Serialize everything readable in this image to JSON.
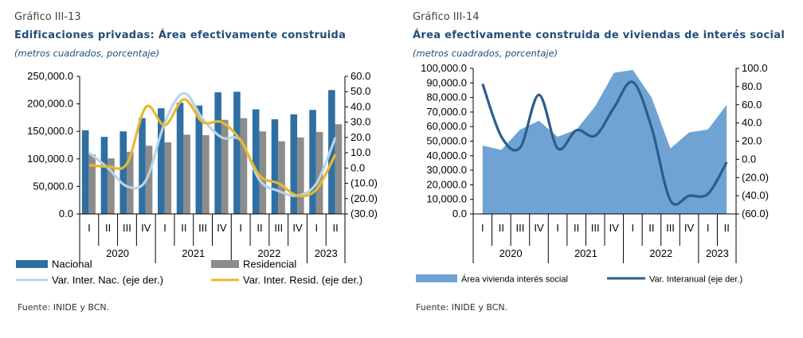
{
  "charts": [
    {
      "figure_label": "Gráfico III-13",
      "title": "Edificaciones privadas: Área efectivamente construida",
      "subtitle": "(metros cuadrados, porcentaje)",
      "source": "Fuente: INIDE y BCN."
    },
    {
      "figure_label": "Gráfico III-14",
      "title": "Área efectivamente construida de viviendas de interés social",
      "subtitle": "(metros cuadrados, porcentaje)",
      "source": "Fuente: INIDE y BCN."
    }
  ],
  "chart_data": [
    {
      "type": "bar",
      "categories": [
        "I",
        "II",
        "III",
        "IV",
        "I",
        "II",
        "III",
        "IV",
        "I",
        "II",
        "III",
        "IV",
        "I",
        "II"
      ],
      "years": [
        {
          "label": "2020",
          "from": 0,
          "to": 3
        },
        {
          "label": "2021",
          "from": 4,
          "to": 7
        },
        {
          "label": "2022",
          "from": 8,
          "to": 11
        },
        {
          "label": "2023",
          "from": 12,
          "to": 13
        }
      ],
      "series": [
        {
          "name": "Nacional",
          "kind": "bar",
          "axis": "left",
          "color": "#2e6fa4",
          "values": [
            152000,
            140000,
            150000,
            174000,
            192000,
            202000,
            197000,
            221000,
            222000,
            190000,
            172000,
            181000,
            189000,
            225000
          ]
        },
        {
          "name": "Residencial",
          "kind": "bar",
          "axis": "left",
          "color": "#8c8c8c",
          "values": [
            108000,
            101000,
            113000,
            124000,
            130000,
            144000,
            143000,
            171000,
            174000,
            150000,
            132000,
            139000,
            149000,
            163000
          ]
        },
        {
          "name": "Var. Inter. Nac. (eje der.)",
          "kind": "line",
          "axis": "right",
          "color": "#b8d4e8",
          "values": [
            10,
            0,
            -12,
            -8,
            30,
            49,
            32,
            20,
            18,
            -8,
            -15,
            -18,
            -10,
            20
          ]
        },
        {
          "name": "Var. Inter. Resid. (eje der.)",
          "kind": "line",
          "axis": "right",
          "color": "#e8b82e",
          "values": [
            2,
            1,
            3,
            40,
            28,
            45,
            30,
            30,
            18,
            -5,
            -10,
            -18,
            -14,
            9
          ]
        }
      ],
      "left_axis": {
        "min": 0,
        "max": 250000,
        "ticks": [
          "0.0",
          "50,000.0",
          "100,000.0",
          "150,000.0",
          "200,000.0",
          "250,000.0"
        ]
      },
      "right_axis": {
        "min": -30,
        "max": 60,
        "ticks": [
          "(30.0)",
          "(20.0)",
          "(10.0)",
          "0.0",
          "10.0",
          "20.0",
          "30.0",
          "40.0",
          "50.0",
          "60.0"
        ]
      },
      "legend_position": "bottom",
      "grid": false
    },
    {
      "type": "area",
      "categories": [
        "I",
        "II",
        "III",
        "IV",
        "I",
        "II",
        "III",
        "IV",
        "I",
        "II",
        "III",
        "IV",
        "I",
        "II"
      ],
      "years": [
        {
          "label": "2020",
          "from": 0,
          "to": 3
        },
        {
          "label": "2021",
          "from": 4,
          "to": 7
        },
        {
          "label": "2022",
          "from": 8,
          "to": 11
        },
        {
          "label": "2023",
          "from": 12,
          "to": 13
        }
      ],
      "series": [
        {
          "name": "Área vivienda interés social",
          "kind": "area",
          "axis": "left",
          "color": "#6fa3d3",
          "values": [
            47000,
            44000,
            58000,
            64000,
            53000,
            58000,
            74000,
            97000,
            99000,
            80000,
            45000,
            56000,
            58000,
            75000
          ]
        },
        {
          "name": "Var. Interanual (eje der.)",
          "kind": "line",
          "axis": "right",
          "color": "#2b5d8c",
          "values": [
            83,
            25,
            13,
            71,
            12,
            32,
            26,
            57,
            85,
            35,
            -45,
            -40,
            -38,
            -3
          ]
        }
      ],
      "left_axis": {
        "min": 0,
        "max": 100000,
        "ticks": [
          "0.0",
          "10,000.0",
          "20,000.0",
          "30,000.0",
          "40,000.0",
          "50,000.0",
          "60,000.0",
          "70,000.0",
          "80,000.0",
          "90,000.0",
          "100,000.0"
        ]
      },
      "right_axis": {
        "min": -60,
        "max": 100,
        "ticks": [
          "(60.0)",
          "(40.0)",
          "(20.0)",
          "0.0",
          "20.0",
          "40.0",
          "60.0",
          "80.0",
          "100.0"
        ]
      },
      "legend_position": "bottom",
      "grid": false
    }
  ]
}
